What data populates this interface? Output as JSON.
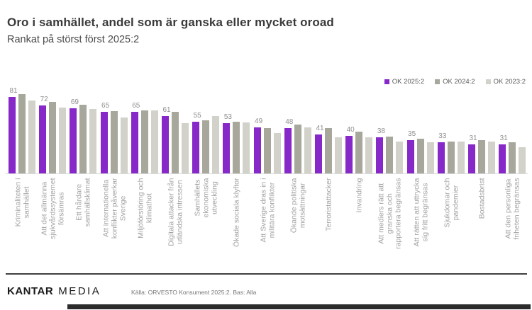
{
  "slide": {
    "title": "Oro i samhället, andel som är ganska eller mycket oroad",
    "subtitle": "Rankat på störst först 2025:2"
  },
  "chart_data": {
    "type": "bar",
    "title": "Oro i samhället, andel som är ganska eller mycket oroad",
    "subtitle": "Rankat på störst först 2025:2",
    "ylim": [
      0,
      100
    ],
    "grid": false,
    "legend_position": "top-right",
    "value_labels_note": "numeric labels shown only for OK 2025:2 series",
    "categories": [
      "Kriminaliteten i samhället",
      "Att det allmänna sjukvårdssystemet försämras",
      "Ett hårdare samhällsklimat",
      "Att internationella konflikter påverkar Sverige",
      "Miljöförstöring och klimathot",
      "Digitala attacker från utländska intressen",
      "Samhällets ekonomiska utveckling",
      "Ökade sociala klyftor",
      "Att Sverige dras in i militära konflikter",
      "Ökande politiska motsättningar",
      "Terroristattacker",
      "Invandring",
      "Att mediers rätt att granska och rapportera begränsas",
      "Att rätten att uttrycka sig fritt begränsas",
      "Sjukdomar och pandemier",
      "Bostadsbrist",
      "Att den personliga friheten begränsas"
    ],
    "category_lines": [
      [
        "Kriminaliteten i",
        "samhället"
      ],
      [
        "Att det allmänna",
        "sjukvårdssystemet",
        "försämras"
      ],
      [
        "Ett hårdare",
        "samhällsklimat"
      ],
      [
        "Att internationella",
        "konflikter påverkar",
        "Sverige"
      ],
      [
        "Miljöförstöring och",
        "klimathot"
      ],
      [
        "Digitala attacker från",
        "utländska intressen"
      ],
      [
        "Samhällets",
        "ekonomiska",
        "utveckling"
      ],
      [
        "Ökade sociala klyftor"
      ],
      [
        "Att Sverige dras in i",
        "militära konflikter"
      ],
      [
        "Ökande politiska",
        "motsättningar"
      ],
      [
        "Terroristattacker"
      ],
      [
        "Invandring"
      ],
      [
        "Att mediers rätt att",
        "granska och",
        "rapportera begränsas"
      ],
      [
        "Att rätten att uttrycka",
        "sig fritt begränsas"
      ],
      [
        "Sjukdomar och",
        "pandemier"
      ],
      [
        "Bostadsbrist"
      ],
      [
        "Att den personliga",
        "friheten begränsas"
      ]
    ],
    "series": [
      {
        "name": "OK 2025:2",
        "color": "#8728C8",
        "labels_shown": true,
        "values": [
          81,
          72,
          69,
          65,
          65,
          61,
          55,
          53,
          49,
          48,
          41,
          40,
          38,
          35,
          33,
          31,
          31
        ]
      },
      {
        "name": "OK 2024:2",
        "color": "#A7A79B",
        "labels_shown": false,
        "estimated": true,
        "values": [
          84,
          76,
          73,
          66,
          67,
          65,
          56,
          55,
          48,
          52,
          48,
          44,
          39,
          37,
          34,
          35,
          33
        ]
      },
      {
        "name": "OK 2023:2",
        "color": "#D2D2CA",
        "labels_shown": false,
        "estimated": true,
        "values": [
          77,
          70,
          68,
          59,
          67,
          53,
          61,
          54,
          43,
          49,
          38,
          38,
          34,
          33,
          34,
          34,
          28
        ]
      }
    ]
  },
  "footer": {
    "brand_bold": "KANTAR",
    "brand_light": "MEDIA",
    "source": "Källa: ORVESTO Konsument 2025:2. Bas: Alla"
  },
  "colors": {
    "title": "#3A3A3A",
    "subtitle": "#4A4A4A",
    "value_label": "#8F8F8F",
    "category_label": "#A3A3A3",
    "axis_line": "#D9D9D9",
    "legend_text": "#5A5A5A",
    "divider": "#3F3F3F",
    "bottom_bar": "#2B2B2B",
    "source_text": "#777777"
  }
}
